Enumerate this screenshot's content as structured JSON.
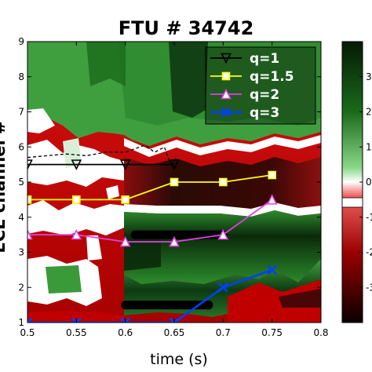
{
  "chart_data": {
    "type": "heatmap",
    "title": "FTU # 34742",
    "xlabel": "time (s)",
    "ylabel": "ECE channel #",
    "xlim": [
      0.5,
      0.8
    ],
    "ylim": [
      1,
      9
    ],
    "x_ticks": [
      "0.5",
      "0.55",
      "0.6",
      "0.65",
      "0.7",
      "0.75",
      "0.8"
    ],
    "y_ticks": [
      "1",
      "2",
      "3",
      "4",
      "5",
      "6",
      "7",
      "8",
      "9"
    ],
    "colorbar_ticks": [
      "3",
      "2",
      "1",
      "0",
      "-1",
      "-2",
      "-3"
    ],
    "colorbar_range": [
      -4,
      4
    ],
    "legend_position": "top-right",
    "colors": {
      "q1": "#000000",
      "q15": "#ffff00",
      "q2": "#e040e0",
      "q3": "#0040ff",
      "positive": "#0c3a12",
      "mid_positive": "#5cc05c",
      "negative": "#c00000",
      "deep_negative": "#1a0000"
    },
    "series": [
      {
        "name": "q=1",
        "marker": "triangle-down",
        "x": [
          0.5,
          0.55,
          0.6,
          0.65
        ],
        "y": [
          5.5,
          5.5,
          5.5,
          5.5
        ]
      },
      {
        "name": "q=1.5",
        "marker": "square",
        "x": [
          0.5,
          0.55,
          0.6,
          0.65,
          0.7,
          0.75
        ],
        "y": [
          4.5,
          4.5,
          4.5,
          5.0,
          5.0,
          5.2
        ]
      },
      {
        "name": "q=2",
        "marker": "triangle-up",
        "x": [
          0.5,
          0.55,
          0.6,
          0.65,
          0.7,
          0.75
        ],
        "y": [
          3.5,
          3.5,
          3.3,
          3.3,
          3.5,
          4.5
        ]
      },
      {
        "name": "q=3",
        "marker": "x",
        "x": [
          0.5,
          0.55,
          0.6,
          0.65,
          0.7,
          0.75
        ],
        "y": [
          1.0,
          1.0,
          1.0,
          1.0,
          2.0,
          2.5
        ]
      }
    ],
    "thick_segments": [
      {
        "x": [
          0.61,
          0.7
        ],
        "y": 3.5
      },
      {
        "x": [
          0.6,
          0.685
        ],
        "y": 1.5
      }
    ],
    "dashed_trace": {
      "x": [
        0.5,
        0.52,
        0.54,
        0.56,
        0.58,
        0.6,
        0.61,
        0.62,
        0.63,
        0.64,
        0.645,
        0.65
      ],
      "y": [
        5.7,
        5.75,
        5.8,
        5.75,
        5.85,
        5.85,
        5.95,
        6.05,
        5.85,
        6.0,
        5.6,
        5.5
      ]
    }
  }
}
